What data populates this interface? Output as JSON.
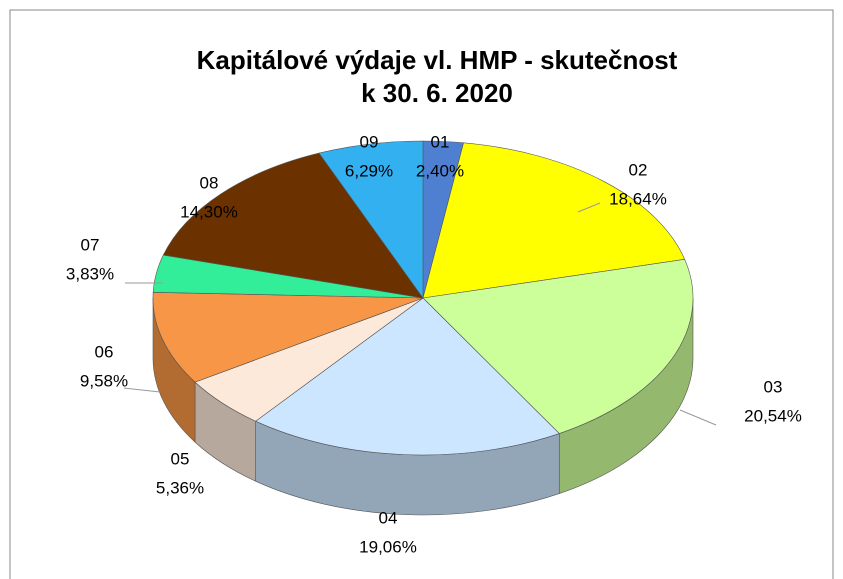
{
  "chart_data": {
    "type": "pie",
    "title": [
      "Kapitálové výdaje vl. HMP - skutečnost",
      "k 30. 6. 2020"
    ],
    "categories": [
      "01",
      "02",
      "03",
      "04",
      "05",
      "06",
      "07",
      "08",
      "09"
    ],
    "values": [
      2.4,
      18.64,
      20.54,
      19.06,
      5.36,
      9.58,
      3.83,
      14.3,
      6.29
    ],
    "value_labels": [
      "2,40%",
      "18,64%",
      "20,54%",
      "19,06%",
      "5,36%",
      "9,58%",
      "3,83%",
      "14,30%",
      "6,29%"
    ],
    "colors": [
      "#4f7fd0",
      "#ffff00",
      "#ccff99",
      "#cce6ff",
      "#fde9d9",
      "#f79646",
      "#33ee99",
      "#6b3200",
      "#33b0f0"
    ]
  }
}
